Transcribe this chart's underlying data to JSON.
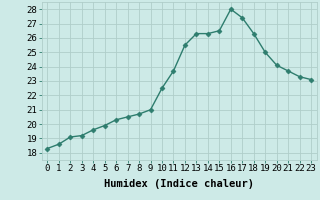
{
  "x": [
    0,
    1,
    2,
    3,
    4,
    5,
    6,
    7,
    8,
    9,
    10,
    11,
    12,
    13,
    14,
    15,
    16,
    17,
    18,
    19,
    20,
    21,
    22,
    23
  ],
  "y": [
    18.3,
    18.6,
    19.1,
    19.2,
    19.6,
    19.9,
    20.3,
    20.5,
    20.7,
    21.0,
    22.5,
    23.7,
    25.5,
    26.3,
    26.3,
    26.5,
    28.0,
    27.4,
    26.3,
    25.0,
    24.1,
    23.7,
    23.3,
    23.1
  ],
  "line_color": "#2e7d6e",
  "marker": "D",
  "marker_size": 2.5,
  "bg_color": "#cdeae7",
  "grid_color": "#b0ceca",
  "xlabel": "Humidex (Indice chaleur)",
  "xlim": [
    -0.5,
    23.5
  ],
  "ylim": [
    17.5,
    28.5
  ],
  "yticks": [
    18,
    19,
    20,
    21,
    22,
    23,
    24,
    25,
    26,
    27,
    28
  ],
  "xtick_labels": [
    "0",
    "1",
    "2",
    "3",
    "4",
    "5",
    "6",
    "7",
    "8",
    "9",
    "10",
    "11",
    "12",
    "13",
    "14",
    "15",
    "16",
    "17",
    "18",
    "19",
    "20",
    "21",
    "22",
    "23"
  ],
  "xlabel_fontsize": 7.5,
  "tick_fontsize": 6.5,
  "line_width": 1.0
}
